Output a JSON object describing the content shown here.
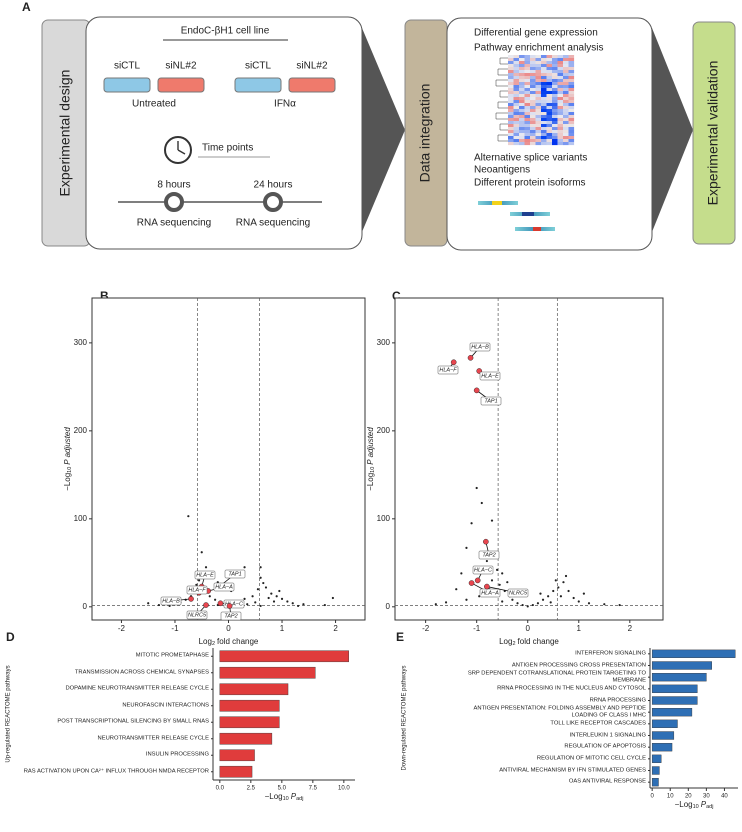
{
  "figure": {
    "panel_labels": [
      "A",
      "B",
      "C",
      "D",
      "E"
    ],
    "design": {
      "title": "Experimental design",
      "cell_line": "EndoC-βH1 cell line",
      "dishes": [
        "siCTL",
        "siNL#2",
        "siCTL",
        "siNL#2"
      ],
      "conditions": [
        "Untreated",
        "IFNα"
      ],
      "time_label": "Time points",
      "time_points": [
        "8 hours",
        "24 hours"
      ],
      "assay": [
        "RNA sequencing",
        "RNA sequencing"
      ]
    },
    "integration": {
      "title": "Data integration",
      "analyses": [
        "Differential gene expression",
        "Pathway enrichment analysis"
      ],
      "outputs": [
        "Alternative splice variants",
        "Neoantigens",
        "Different protein isoforms"
      ]
    },
    "validation": {
      "title": "Experimental validation"
    }
  },
  "chart_data": [
    {
      "type": "scatter",
      "xlabel": [
        "Log",
        "2",
        "fold change"
      ],
      "ylabel": [
        "−Log",
        "10",
        "P adjusted"
      ],
      "xlim": [
        -2.55,
        2.55
      ],
      "ylim": [
        -15,
        351
      ],
      "xticks": [
        -2,
        -1,
        0,
        1,
        2
      ],
      "yticks": [
        0,
        100,
        200,
        300
      ],
      "vlines": [
        -0.58,
        0.58
      ],
      "hline": 1.3,
      "color": "#222222",
      "gene_color": "#e8464f",
      "x": [
        -0.75,
        -0.5,
        -0.42,
        -0.3,
        -0.55,
        -0.2,
        0.05,
        0.6,
        0.6,
        0.65,
        0.7,
        0.8,
        0.9,
        1.0,
        1.1,
        1.2,
        1.4,
        1.8,
        1.95,
        -1.0,
        -1.3,
        -1.5,
        -0.9,
        -0.8,
        -0.7,
        -0.65,
        -0.6,
        -0.45,
        -0.35,
        -0.25,
        -0.15,
        0.15,
        0.3,
        0.45,
        0.55,
        0.75,
        0.85,
        0.5,
        0.35,
        0.2,
        -0.05,
        0.1,
        -0.2,
        -0.4,
        0.6,
        1.3,
        -1.1,
        -0.02,
        0.3,
        0.95
      ],
      "y": [
        103,
        62,
        45,
        38,
        30,
        28,
        18,
        45,
        33,
        27,
        22,
        15,
        12,
        9,
        6,
        4,
        3,
        2,
        10,
        3,
        2,
        4,
        5,
        8,
        12,
        18,
        25,
        20,
        12,
        8,
        5,
        6,
        9,
        12,
        20,
        10,
        6,
        5,
        3,
        2,
        1,
        1,
        2,
        3,
        1,
        1,
        1,
        0.5,
        45,
        18
      ],
      "genes": [
        {
          "name": "HLA−E",
          "x": -0.5,
          "y": 23
        },
        {
          "name": "TAP1",
          "x": -0.15,
          "y": 24
        },
        {
          "name": "HLA−A",
          "x": -0.38,
          "y": 18
        },
        {
          "name": "HLA−F",
          "x": -0.55,
          "y": 16
        },
        {
          "name": "HLA−B",
          "x": -0.7,
          "y": 9
        },
        {
          "name": "HLA−C",
          "x": -0.15,
          "y": 4
        },
        {
          "name": "NLRC5",
          "x": -0.42,
          "y": 2
        },
        {
          "name": "TAP2",
          "x": 0.02,
          "y": 1
        }
      ]
    },
    {
      "type": "scatter",
      "xlabel": [
        "Log",
        "2",
        "fold change"
      ],
      "ylabel": [
        "−Log",
        "10",
        "P adjusted"
      ],
      "xlim": [
        -2.6,
        2.65
      ],
      "ylim": [
        -15,
        351
      ],
      "xticks": [
        -2,
        -1,
        0,
        1,
        2
      ],
      "yticks": [
        0,
        100,
        200,
        300
      ],
      "vlines": [
        -0.58,
        0.58
      ],
      "hline": 1.3,
      "color": "#222222",
      "gene_color": "#e8464f",
      "x": [
        -1.0,
        -0.9,
        -1.1,
        -1.2,
        -0.7,
        -0.65,
        -0.6,
        -0.8,
        -0.5,
        -0.7,
        -1.3,
        -1.4,
        -0.9,
        -0.4,
        -0.45,
        -0.35,
        -0.3,
        -0.2,
        -0.1,
        0,
        0.1,
        0.2,
        0.3,
        0.4,
        0.5,
        0.6,
        0.7,
        0.75,
        0.8,
        0.9,
        1.0,
        1.2,
        1.5,
        1.8,
        -1.6,
        -1.8,
        -0.55,
        -0.25,
        0.25,
        0.55,
        0.65,
        -0.75,
        -0.95,
        -1.2,
        0.45,
        -0.5,
        1.1
      ],
      "y": [
        135,
        118,
        95,
        67,
        98,
        58,
        42,
        52,
        38,
        30,
        38,
        20,
        40,
        28,
        18,
        12,
        8,
        4,
        2,
        0.5,
        2,
        4,
        8,
        12,
        18,
        22,
        28,
        35,
        18,
        10,
        6,
        4,
        3,
        2,
        5,
        3,
        25,
        14,
        15,
        30,
        12,
        20,
        12,
        8,
        5,
        6,
        15
      ],
      "genes": [
        {
          "name": "HLA−B",
          "x": -1.12,
          "y": 283
        },
        {
          "name": "HLA−F",
          "x": -1.45,
          "y": 278
        },
        {
          "name": "HLA−E",
          "x": -0.95,
          "y": 268
        },
        {
          "name": "TAP1",
          "x": -1.0,
          "y": 246
        },
        {
          "name": "TAP2",
          "x": -0.82,
          "y": 74
        },
        {
          "name": "HLA−C",
          "x": -0.98,
          "y": 30
        },
        {
          "name": "HLA−A",
          "x": -1.1,
          "y": 27
        },
        {
          "name": "NLRC5",
          "x": -0.8,
          "y": 23
        }
      ]
    },
    {
      "type": "barh",
      "ylabel": "Up-regulated REACTOME pathways",
      "xlabel": [
        "−Log",
        "10",
        "P",
        "adj"
      ],
      "color": "#e03c3c",
      "xlim": [
        -0.55,
        10.9
      ],
      "xticks": [
        {
          "value": 0,
          "label": "0.0"
        },
        2.5,
        {
          "value": 5,
          "label": "5.0"
        },
        7.5,
        {
          "value": 10,
          "label": "10.0"
        }
      ],
      "categories": [
        "MITOTIC PROMETAPHASE",
        "TRANSMISSION ACROSS CHEMICAL SYNAPSES",
        "DOPAMINE NEUROTRANSMITTER RELEASE CYCLE",
        "NEUROFASCIN INTERACTIONS",
        "POST TRANSCRIPTIONAL SILENCING BY SMALL RNAS",
        "NEUROTRANSMITTER RELEASE CYCLE",
        "INSULIN PROCESSING",
        "RAS ACTIVATION UPON CA²⁺ INFLUX THROUGH NMDA RECEPTOR"
      ],
      "values": [
        10.4,
        7.7,
        5.5,
        4.8,
        4.8,
        4.2,
        2.8,
        2.6
      ]
    },
    {
      "type": "barh",
      "ylabel": "Down-regulated REACTOME pathways",
      "xlabel": [
        "−Log",
        "10",
        "P",
        "adj"
      ],
      "color": "#2e6fb5",
      "xlim": [
        -1.2,
        47.5
      ],
      "xticks": [
        0,
        10,
        20,
        30,
        40
      ],
      "categories": [
        "INTERFERON SIGNALING",
        "ANTIGEN PROCESSING CROSS PRESENTATION",
        "SRP DEPENDENT COTRANSLATIONAL PROTEIN TARGETING TO MEMBRANE",
        "RRNA PROCESSING IN THE NUCLEUS AND CYTOSOL",
        "RRNA PROCESSING",
        "ANTIGEN PRESENTATION: FOLDING ASSEMBLY AND PEPTIDE LOADING OF CLASS I MHC",
        "TOLL LIKE RECEPTOR CASCADES",
        "INTERLEUKIN 1 SIGNALING",
        "REGULATION OF APOPTOSIS",
        "REGULATION OF MITOTIC CELL CYCLE",
        "ANTIVIRAL MECHANISM BY IFN STIMULATED GENES",
        "OAS ANTIVIRAL RESPONSE"
      ],
      "values": [
        46,
        33,
        30,
        25,
        25,
        22,
        14,
        12,
        11,
        5,
        4,
        3.5
      ]
    }
  ]
}
